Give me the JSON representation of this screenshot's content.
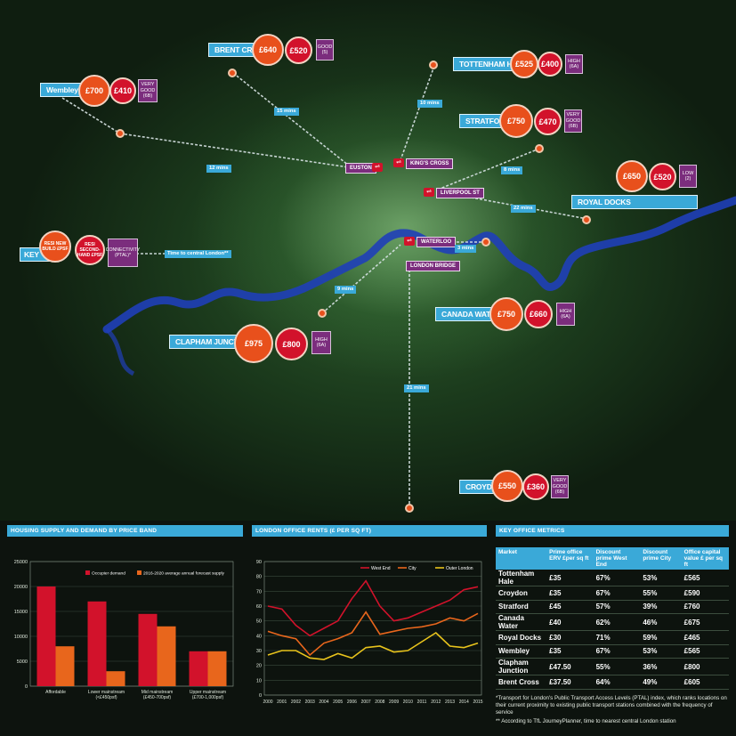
{
  "map": {
    "boroughs": [
      {
        "key": "wembley",
        "name": "Wembley",
        "resi_new": "£700",
        "resi_second": "£410",
        "ptal": "VERY GOOD (6B)"
      },
      {
        "key": "brent",
        "name": "BRENT CROSS",
        "resi_new": "£640",
        "resi_second": "£520",
        "ptal": "GOOD (5)"
      },
      {
        "key": "tottenham",
        "name": "TOTTENHAM HALE",
        "resi_new": "£525",
        "resi_second": "£400",
        "ptal": "HIGH (6A)"
      },
      {
        "key": "stratford",
        "name": "STRATFORD",
        "resi_new": "£750",
        "resi_second": "£470",
        "ptal": "VERY GOOD (6B)"
      },
      {
        "key": "royal",
        "name": "ROYAL DOCKS",
        "resi_new": "£650",
        "resi_second": "£520",
        "ptal": "LOW (2)"
      },
      {
        "key": "canada",
        "name": "CANADA WATER",
        "resi_new": "£750",
        "resi_second": "£660",
        "ptal": "HIGH (6A)"
      },
      {
        "key": "clapham",
        "name": "CLAPHAM JUNCTION",
        "resi_new": "£975",
        "resi_second": "£800",
        "ptal": "HIGH (6A)"
      },
      {
        "key": "croydon",
        "name": "CROYDON",
        "resi_new": "£550",
        "resi_second": "£360",
        "ptal": "VERY GOOD (6B)"
      }
    ],
    "stations": {
      "euston": "EUSTON",
      "kings_cross": "KING'S CROSS",
      "liverpool": "LIVERPOOL ST",
      "waterloo": "WATERLOO",
      "london_bridge": "LONDON BRIDGE"
    },
    "times": {
      "brent": "15 mins",
      "wembley": "12 mins",
      "tottenham": "10 mins",
      "stratford": "8 mins",
      "royal": "22 mins",
      "canada": "3 mins",
      "clapham": "9 mins",
      "croydon": "21 mins"
    },
    "key": {
      "title": "KEY",
      "resi_new": "RESI NEW BUILD £PSF",
      "resi_second": "RESI SECOND-HAND £PSF",
      "connectivity": "CONNECTIVITY (PTAL)*",
      "time_label": "Time to central London**"
    },
    "colors": {
      "new_build": "#e8501c",
      "second_hand": "#d2122b",
      "ptal": "#7b2d7d",
      "label": "#3aa9d8",
      "river": "#1f3fb8"
    }
  },
  "housing": {
    "title": "HOUSING SUPPLY AND DEMAND BY PRICE BAND",
    "chart_data": {
      "type": "bar",
      "categories": [
        "Affordable",
        "Lower mainstream (<£450psf)",
        "Mid mainstream (£450-700psf)",
        "Upper mainstream (£700-1,000psf)"
      ],
      "category_lines": [
        [
          "Affordable"
        ],
        [
          "Lower mainstream",
          "(<£450psf)"
        ],
        [
          "Mid mainstream",
          "(£450-700psf)"
        ],
        [
          "Upper mainstream",
          "(£700-1,000psf)"
        ]
      ],
      "series": [
        {
          "name": "Occupier demand",
          "color": "#d2122b",
          "values": [
            20000,
            17000,
            14500,
            7000
          ]
        },
        {
          "name": "2016-2020 average annual forecast supply",
          "color": "#e8661c",
          "values": [
            8000,
            3000,
            12000,
            7000
          ]
        }
      ],
      "ylim": [
        0,
        25000
      ],
      "yticks": [
        "0",
        "5000",
        "10000",
        "15000",
        "20000",
        "25000"
      ],
      "ytick_values": [
        0,
        5000,
        10000,
        15000,
        20000,
        25000
      ]
    }
  },
  "rents": {
    "title": "LONDON OFFICE RENTS (£ PER SQ FT)",
    "chart_data": {
      "type": "line",
      "x": [
        "2000",
        "2001",
        "2002",
        "2003",
        "2004",
        "2005",
        "2006",
        "2007",
        "2008",
        "2009",
        "2010",
        "2011",
        "2012",
        "2013",
        "2014",
        "2015"
      ],
      "series": [
        {
          "name": "West End",
          "color": "#d2122b",
          "values": [
            60,
            58,
            47,
            40,
            45,
            50,
            65,
            77,
            60,
            50,
            52,
            56,
            60,
            64,
            71,
            73
          ]
        },
        {
          "name": "City",
          "color": "#e8661c",
          "values": [
            43,
            40,
            38,
            27,
            35,
            38,
            42,
            56,
            41,
            43,
            45,
            46,
            48,
            52,
            50,
            55
          ]
        },
        {
          "name": "Outer London",
          "color": "#e8c31c",
          "values": [
            27,
            30,
            30,
            25,
            24,
            28,
            25,
            32,
            33,
            29,
            30,
            36,
            42,
            33,
            32,
            35
          ]
        }
      ],
      "ylim": [
        0,
        90
      ],
      "yticks": [
        "0",
        "10",
        "20",
        "30",
        "40",
        "50",
        "60",
        "70",
        "80",
        "90"
      ],
      "ytick_values": [
        0,
        10,
        20,
        30,
        40,
        50,
        60,
        70,
        80,
        90
      ],
      "legend": "top-right"
    }
  },
  "metrics": {
    "title": "KEY OFFICE METRICS",
    "headers": [
      "Market",
      "Prime office ERV £per sq ft",
      "Discount prime West End",
      "Discount prime City",
      "Office capital value £ per sq ft"
    ],
    "rows": [
      [
        "Tottenham Hale",
        "£35",
        "67%",
        "53%",
        "£565"
      ],
      [
        "Croydon",
        "£35",
        "67%",
        "55%",
        "£590"
      ],
      [
        "Stratford",
        "£45",
        "57%",
        "39%",
        "£760"
      ],
      [
        "Canada Water",
        "£40",
        "62%",
        "46%",
        "£675"
      ],
      [
        "Royal Docks",
        "£30",
        "71%",
        "59%",
        "£465"
      ],
      [
        "Wembley",
        "£35",
        "67%",
        "53%",
        "£565"
      ],
      [
        "Clapham Junction",
        "£47.50",
        "55%",
        "36%",
        "£800"
      ],
      [
        "Brent Cross",
        "£37.50",
        "64%",
        "49%",
        "£605"
      ]
    ],
    "footnote1": "*Transport for London's Public Transport Access Levels (PTAL) index, which ranks locations on their current proximity to existing public transport stations combined with the frequency of service",
    "footnote2": "** According to TfL JourneyPlanner, time to nearest central London station"
  }
}
